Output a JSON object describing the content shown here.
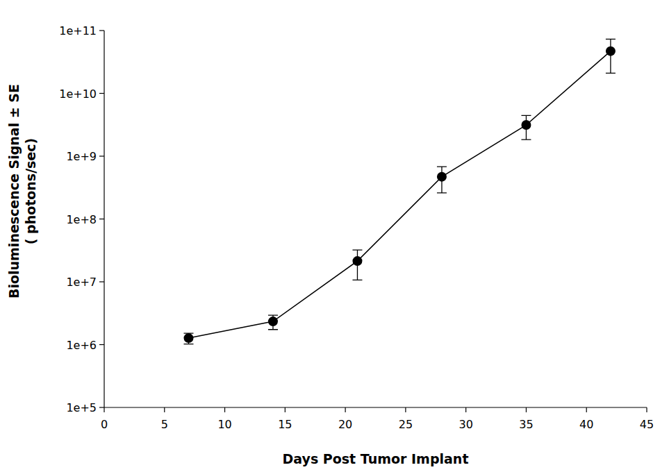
{
  "chart_data": {
    "type": "line",
    "xlabel": "Days Post Tumor Implant",
    "ylabel": [
      "Bioluminescence Signal ± SE",
      "( photons/sec)"
    ],
    "x": [
      7,
      14,
      21,
      28,
      35,
      42
    ],
    "values": [
      1270000,
      2340000,
      21400000,
      470000000,
      3140000000,
      47000000000
    ],
    "errors": [
      250000,
      600000,
      10700000,
      210000000,
      1300000000,
      26000000000
    ],
    "color": "#000000",
    "marker": "circle",
    "line_style": "solid",
    "log": "y",
    "grid": false,
    "xlim": [
      0,
      45
    ],
    "xticks": [
      0,
      5,
      10,
      15,
      20,
      25,
      30,
      35,
      40,
      45
    ],
    "ylim": [
      100000,
      100000000000
    ],
    "yticks": [
      {
        "value": 100000,
        "label": "1e+5"
      },
      {
        "value": 1000000,
        "label": "1e+6"
      },
      {
        "value": 10000000,
        "label": "1e+7"
      },
      {
        "value": 100000000,
        "label": "1e+8"
      },
      {
        "value": 1000000000,
        "label": "1e+9"
      },
      {
        "value": 10000000000,
        "label": "1e+10"
      },
      {
        "value": 100000000000,
        "label": "1e+11"
      }
    ]
  }
}
